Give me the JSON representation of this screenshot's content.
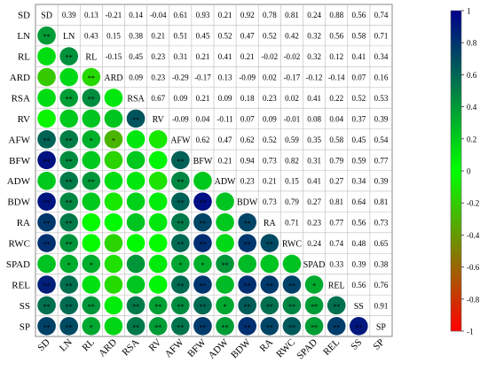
{
  "chart_data": {
    "type": "heatmap",
    "title": "",
    "variables": [
      "SD",
      "LN",
      "RL",
      "ARD",
      "RSA",
      "RV",
      "AFW",
      "BFW",
      "ADW",
      "BDW",
      "RA",
      "RWC",
      "SPAD",
      "REL",
      "SS",
      "SP"
    ],
    "upper_values": [
      [
        null,
        "0.39",
        "0.13",
        "-0.21",
        "0.14",
        "-0.04",
        "0.61",
        "0.93",
        "0.21",
        "0.92",
        "0.78",
        "0.81",
        "0.24",
        "0.88",
        "0.56",
        "0.74"
      ],
      [
        null,
        null,
        "0.43",
        "0.15",
        "0.38",
        "0.21",
        "0.51",
        "0.45",
        "0.52",
        "0.47",
        "0.52",
        "0.42",
        "0.32",
        "0.56",
        "0.58",
        "0.71"
      ],
      [
        null,
        null,
        null,
        "-0.15",
        "0.45",
        "0.23",
        "0.31",
        "0.21",
        "0.41",
        "0.21",
        "-0.02",
        "-0.02",
        "0.32",
        "0.12",
        "0.41",
        "0.34"
      ],
      [
        null,
        null,
        null,
        null,
        "0.09",
        "0.23",
        "-0.29",
        "-0.17",
        "0.13",
        "-0.09",
        "0.02",
        "-0.17",
        "-0.12",
        "-0.14",
        "0.07",
        "0.16"
      ],
      [
        null,
        null,
        null,
        null,
        null,
        "0.67",
        "0.09",
        "0.21",
        "0.09",
        "0.18",
        "0.23",
        "0.02",
        "0.41",
        "0.22",
        "0.52",
        "0.53"
      ],
      [
        null,
        null,
        null,
        null,
        null,
        null,
        "-0.09",
        "0.04",
        "-0.11",
        "0.07",
        "0.09",
        "-0.01",
        "0.08",
        "0.04",
        "0.37",
        "0.39"
      ],
      [
        null,
        null,
        null,
        null,
        null,
        null,
        null,
        "0.62",
        "0.47",
        "0.62",
        "0.52",
        "0.59",
        "0.35",
        "0.58",
        "0.45",
        "0.54"
      ],
      [
        null,
        null,
        null,
        null,
        null,
        null,
        null,
        null,
        "0.21",
        "0.94",
        "0.73",
        "0.82",
        "0.31",
        "0.79",
        "0.59",
        "0.77"
      ],
      [
        null,
        null,
        null,
        null,
        null,
        null,
        null,
        null,
        null,
        "0.23",
        "0.21",
        "0.15",
        "0.41",
        "0.27",
        "0.34",
        "0.39"
      ],
      [
        null,
        null,
        null,
        null,
        null,
        null,
        null,
        null,
        null,
        null,
        "0.73",
        "0.79",
        "0.27",
        "0.81",
        "0.64",
        "0.81"
      ],
      [
        null,
        null,
        null,
        null,
        null,
        null,
        null,
        null,
        null,
        null,
        null,
        "0.71",
        "0.23",
        "0.77",
        "0.56",
        "0.73"
      ],
      [
        null,
        null,
        null,
        null,
        null,
        null,
        null,
        null,
        null,
        null,
        null,
        null,
        "0.24",
        "0.74",
        "0.48",
        "0.65"
      ],
      [
        null,
        null,
        null,
        null,
        null,
        null,
        null,
        null,
        null,
        null,
        null,
        null,
        null,
        "0.33",
        "0.39",
        "0.38"
      ],
      [
        null,
        null,
        null,
        null,
        null,
        null,
        null,
        null,
        null,
        null,
        null,
        null,
        null,
        null,
        "0.56",
        "0.76"
      ],
      [
        null,
        null,
        null,
        null,
        null,
        null,
        null,
        null,
        null,
        null,
        null,
        null,
        null,
        null,
        null,
        "0.91"
      ],
      [
        null,
        null,
        null,
        null,
        null,
        null,
        null,
        null,
        null,
        null,
        null,
        null,
        null,
        null,
        null,
        null
      ]
    ],
    "lower_significance": [
      [],
      [
        "**"
      ],
      [
        "",
        "**"
      ],
      [
        "",
        "",
        "**"
      ],
      [
        "",
        "**",
        "**",
        ""
      ],
      [
        "",
        "",
        "",
        "",
        "**"
      ],
      [
        "**",
        "**",
        "*",
        "*",
        "",
        ""
      ],
      [
        "**",
        "**",
        "",
        "",
        "",
        "",
        "**"
      ],
      [
        "",
        "**",
        "**",
        "",
        "",
        "",
        "**",
        ""
      ],
      [
        "**",
        "**",
        "",
        "",
        "",
        "",
        "**",
        "**",
        ""
      ],
      [
        "**",
        "**",
        "",
        "",
        "",
        "",
        "**",
        "**",
        "",
        "**"
      ],
      [
        "**",
        "**",
        "",
        "",
        "",
        "",
        "**",
        "**",
        "",
        "**",
        "**"
      ],
      [
        "",
        "*",
        "*",
        "",
        "",
        "",
        "*",
        "*",
        "**",
        "",
        "",
        ""
      ],
      [
        "**",
        "**",
        "",
        "",
        "",
        "",
        "**",
        "**",
        "",
        "**",
        "**",
        "**",
        "*"
      ],
      [
        "**",
        "**",
        "**",
        "",
        "**",
        "**",
        "**",
        "**",
        "*",
        "**",
        "**",
        "**",
        "**",
        "**"
      ],
      [
        "**",
        "**",
        "*",
        "",
        "**",
        "**",
        "**",
        "**",
        "**",
        "**",
        "**",
        "**",
        "**",
        "**",
        "**"
      ]
    ],
    "legend": {
      "ticks": [
        "1",
        "0.8",
        "0.6",
        "0.4",
        "0.2",
        "0",
        "-0.2",
        "-0.4",
        "-0.6",
        "-0.8",
        "-1"
      ],
      "range": [
        -1,
        1
      ],
      "colors": [
        "#ff0000",
        "#00ff00",
        "#00008b"
      ]
    },
    "grid": true,
    "legend_position": "right"
  }
}
